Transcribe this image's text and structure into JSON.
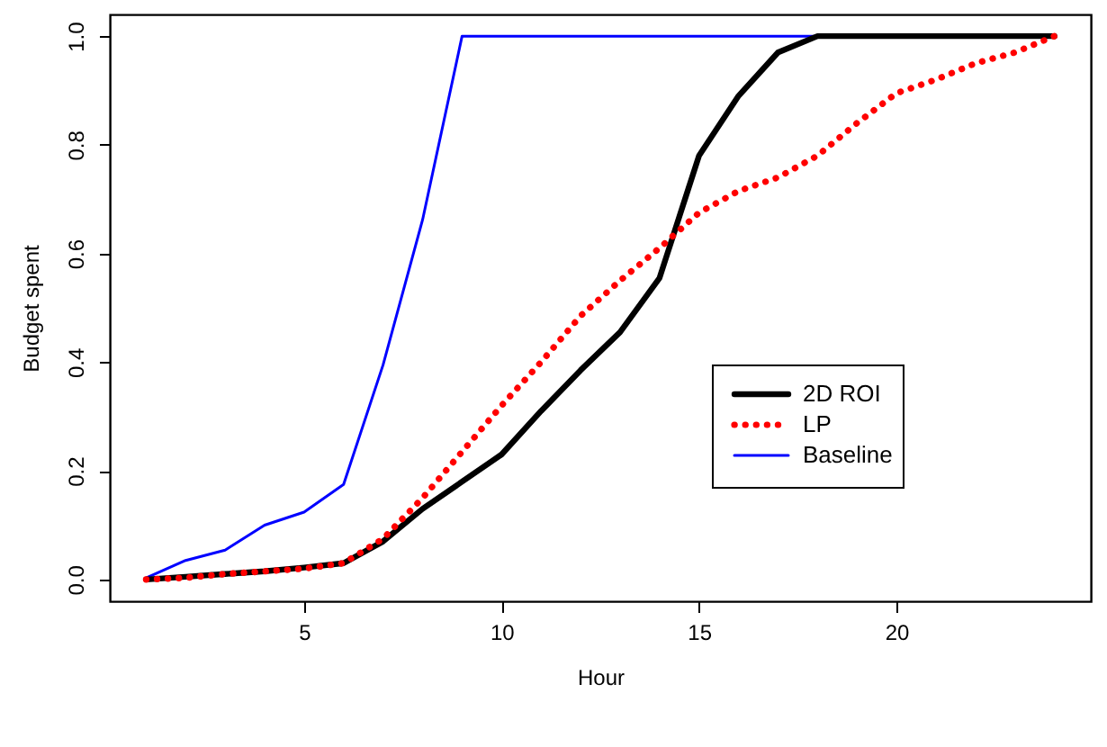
{
  "chart_data": {
    "type": "line",
    "xlabel": "Hour",
    "ylabel": "Budget spent",
    "x": [
      1,
      2,
      3,
      4,
      5,
      6,
      7,
      8,
      9,
      10,
      11,
      12,
      13,
      14,
      15,
      16,
      17,
      18,
      19,
      20,
      21,
      22,
      23,
      24
    ],
    "series": [
      {
        "name": "2D ROI",
        "color": "#000000",
        "line_style": "solid",
        "values": [
          0.0,
          0.005,
          0.01,
          0.015,
          0.022,
          0.03,
          0.07,
          0.13,
          0.18,
          0.23,
          0.31,
          0.385,
          0.455,
          0.555,
          0.78,
          0.89,
          0.97,
          1.0,
          1.0,
          1.0,
          1.0,
          1.0,
          1.0,
          1.0
        ]
      },
      {
        "name": "LP",
        "color": "#ff0000",
        "line_style": "dotted",
        "values": [
          0.0,
          0.003,
          0.01,
          0.015,
          0.02,
          0.03,
          0.075,
          0.15,
          0.235,
          0.32,
          0.4,
          0.485,
          0.55,
          0.61,
          0.675,
          0.715,
          0.74,
          0.78,
          0.84,
          0.895,
          0.92,
          0.95,
          0.97,
          1.0
        ]
      },
      {
        "name": "Baseline",
        "color": "#0000ff",
        "line_style": "solid",
        "values": [
          0.003,
          0.035,
          0.054,
          0.1,
          0.124,
          0.175,
          0.395,
          0.662,
          1.0,
          1.0,
          1.0,
          1.0,
          1.0,
          1.0,
          1.0,
          1.0,
          1.0,
          1.0,
          null,
          null,
          null,
          null,
          null,
          null
        ]
      }
    ],
    "xlim": [
      0.08,
      24.92
    ],
    "ylim": [
      -0.04,
      1.04
    ],
    "xticks": [
      5,
      10,
      15,
      20
    ],
    "yticks": [
      {
        "value": 0,
        "label": "0.0"
      },
      {
        "value": 0.2,
        "label": "0.2"
      },
      {
        "value": 0.4,
        "label": "0.4"
      },
      {
        "value": 0.6,
        "label": "0.6"
      },
      {
        "value": 0.8,
        "label": "0.8"
      },
      {
        "value": 1.0,
        "label": "1.0"
      }
    ],
    "grid": false,
    "legend": "right",
    "marker": "none"
  }
}
